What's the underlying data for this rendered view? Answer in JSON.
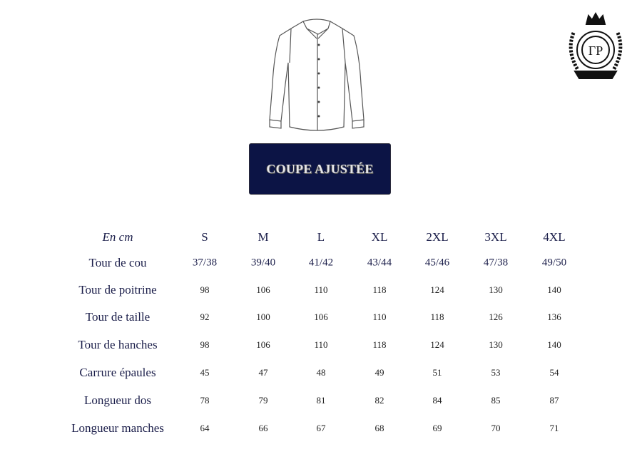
{
  "fit_label": "COUPE AJUSTÉE",
  "logo_text": "CP",
  "colors": {
    "navy": "#0c1445",
    "text": "#1b1e4a"
  },
  "table": {
    "unit": "En cm",
    "sizes": [
      "S",
      "M",
      "L",
      "XL",
      "2XL",
      "3XL",
      "4XL"
    ],
    "rows": [
      {
        "label": "Tour de cou",
        "values": [
          "37/38",
          "39/40",
          "41/42",
          "43/44",
          "45/46",
          "47/38",
          "49/50"
        ]
      },
      {
        "label": "Tour de poitrine",
        "values": [
          "98",
          "106",
          "110",
          "118",
          "124",
          "130",
          "140"
        ]
      },
      {
        "label": "Tour de taille",
        "values": [
          "92",
          "100",
          "106",
          "110",
          "118",
          "126",
          "136"
        ]
      },
      {
        "label": "Tour de hanches",
        "values": [
          "98",
          "106",
          "110",
          "118",
          "124",
          "130",
          "140"
        ]
      },
      {
        "label": "Carrure épaules",
        "values": [
          "45",
          "47",
          "48",
          "49",
          "51",
          "53",
          "54"
        ]
      },
      {
        "label": "Longueur dos",
        "values": [
          "78",
          "79",
          "81",
          "82",
          "84",
          "85",
          "87"
        ]
      },
      {
        "label": "Longueur manches",
        "values": [
          "64",
          "66",
          "67",
          "68",
          "69",
          "70",
          "71"
        ]
      }
    ]
  }
}
